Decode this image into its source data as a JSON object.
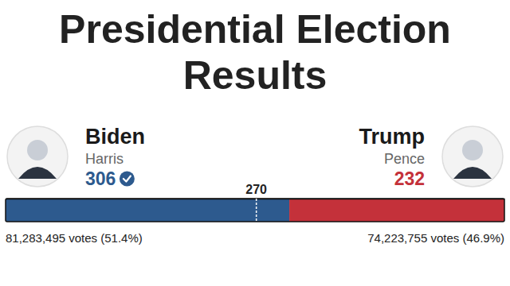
{
  "chart_data": {
    "type": "bar",
    "orientation": "horizontal",
    "stacked": true,
    "title": "Presidential Election Results",
    "categories": [
      null
    ],
    "series": [
      {
        "name": "Biden",
        "running_mate": "Harris",
        "color": "#2d5a8e",
        "values": [
          306
        ],
        "winner": true,
        "votes": "81,283,495 votes (51.4%)"
      },
      {
        "name": "Trump",
        "running_mate": "Pence",
        "color": "#c4313a",
        "values": [
          232
        ],
        "winner": false,
        "votes": "74,223,755 votes (46.9%)"
      }
    ],
    "xlim": [
      0,
      538
    ],
    "xticks": [
      270
    ],
    "tick_labels": "x",
    "data_labels": true
  }
}
